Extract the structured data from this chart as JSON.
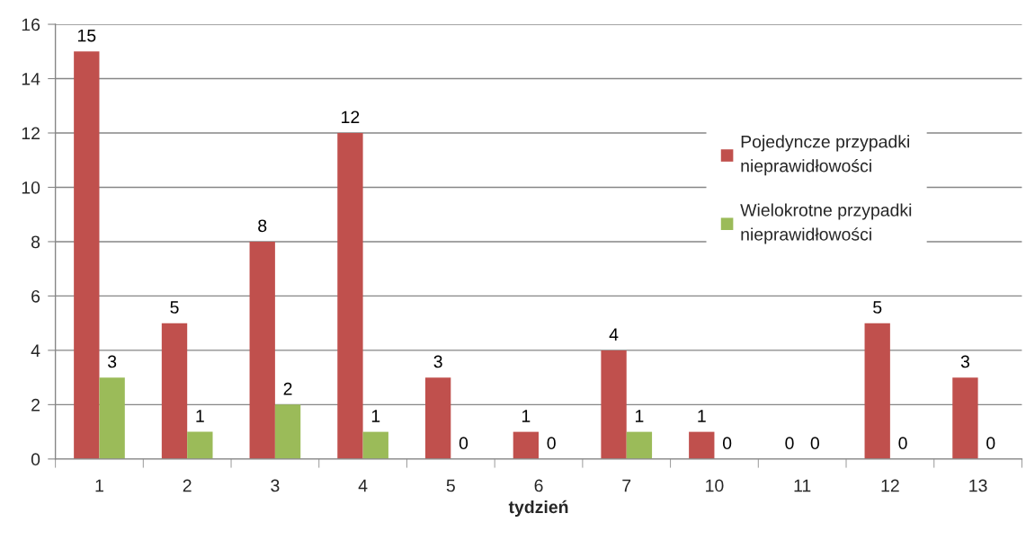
{
  "chart_data": {
    "type": "bar",
    "xlabel": "tydzień",
    "categories": [
      "1",
      "2",
      "3",
      "4",
      "5",
      "6",
      "7",
      "10",
      "11",
      "12",
      "13"
    ],
    "series": [
      {
        "name": "Pojedyncze przypadki\nnieprawidłowości",
        "color": "#c0504d",
        "values": [
          15,
          5,
          8,
          12,
          3,
          1,
          4,
          1,
          0,
          5,
          3
        ]
      },
      {
        "name": "Wielokrotne przypadki\nnieprawidłowości",
        "color": "#9bbb59",
        "values": [
          3,
          1,
          2,
          1,
          0,
          0,
          1,
          0,
          0,
          0,
          0
        ]
      }
    ],
    "ylim": [
      0,
      16
    ],
    "yticks": [
      0,
      2,
      4,
      6,
      8,
      10,
      12,
      14,
      16
    ],
    "grid": "y",
    "legend": "right",
    "data_labels": true
  }
}
